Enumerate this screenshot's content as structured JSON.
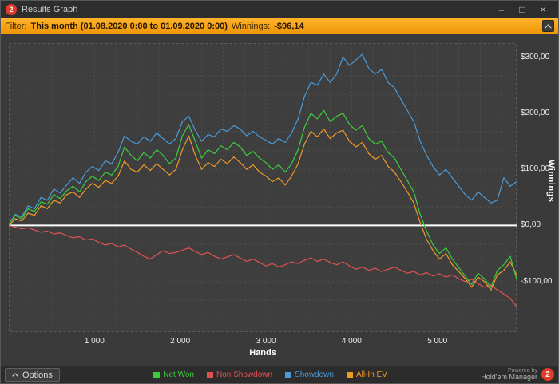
{
  "window": {
    "title": "Results Graph",
    "logo_text": "2",
    "controls": {
      "minimize": "–",
      "maximize": "□",
      "close": "×"
    }
  },
  "filter_bar": {
    "label": "Filter:",
    "value": "This month (01.08.2020 0:00 to 01.09.2020 0:00)",
    "winnings_label": "Winnings:",
    "winnings_value": "-$96,14"
  },
  "options_button": {
    "label": "Options"
  },
  "powered_by": {
    "line1": "Powered by",
    "line2": "Hold'em Manager",
    "logo_text": "2"
  },
  "colors": {
    "logo_red": "#e23b2a",
    "filter_bar_top": "#ffb32b",
    "filter_bar_bottom": "#ee9607",
    "zero_line": "#ffffff",
    "grid": "#4d4d4d"
  },
  "chart_data": {
    "type": "line",
    "title": "",
    "xlabel": "Hands",
    "ylabel": "Winnings",
    "xlim": [
      0,
      5925
    ],
    "ylim": [
      -190,
      325
    ],
    "x_start": 0,
    "x_step": 75,
    "grid": {
      "x_step": 250,
      "y_step": 33.3333
    },
    "x_ticks": [
      {
        "value": 1000,
        "label": "1 000"
      },
      {
        "value": 2000,
        "label": "2 000"
      },
      {
        "value": 3000,
        "label": "3 000"
      },
      {
        "value": 4000,
        "label": "4 000"
      },
      {
        "value": 5000,
        "label": "5 000"
      }
    ],
    "y_ticks": [
      {
        "value": 300,
        "label": "$300,00"
      },
      {
        "value": 200,
        "label": "$200,00"
      },
      {
        "value": 100,
        "label": "$100,00"
      },
      {
        "value": 0,
        "label": "$0,00"
      },
      {
        "value": -100,
        "label": "-$100,00"
      }
    ],
    "legend_position": "bottom",
    "draw_order": [
      1,
      2,
      3,
      0
    ],
    "series": [
      {
        "name": "Net Won",
        "color": "#3ecb3e",
        "values": [
          2,
          18,
          12,
          30,
          25,
          42,
          38,
          55,
          48,
          62,
          70,
          60,
          78,
          88,
          80,
          95,
          90,
          105,
          140,
          125,
          115,
          130,
          120,
          135,
          125,
          110,
          120,
          160,
          180,
          150,
          120,
          135,
          128,
          142,
          135,
          148,
          140,
          125,
          132,
          120,
          112,
          100,
          108,
          95,
          110,
          135,
          175,
          200,
          190,
          205,
          185,
          195,
          200,
          180,
          170,
          178,
          155,
          145,
          150,
          130,
          120,
          100,
          80,
          60,
          20,
          -10,
          -35,
          -50,
          -40,
          -60,
          -75,
          -90,
          -105,
          -85,
          -95,
          -110,
          -80,
          -70,
          -55,
          -96
        ]
      },
      {
        "name": "Non Showdown",
        "color": "#e05252",
        "values": [
          0,
          -3,
          -6,
          -4,
          -8,
          -12,
          -10,
          -15,
          -13,
          -18,
          -22,
          -20,
          -26,
          -24,
          -30,
          -35,
          -32,
          -38,
          -35,
          -42,
          -48,
          -55,
          -60,
          -52,
          -45,
          -50,
          -48,
          -44,
          -40,
          -46,
          -52,
          -48,
          -55,
          -60,
          -56,
          -52,
          -58,
          -64,
          -60,
          -66,
          -72,
          -68,
          -74,
          -70,
          -65,
          -68,
          -62,
          -58,
          -64,
          -60,
          -66,
          -70,
          -65,
          -72,
          -78,
          -74,
          -80,
          -76,
          -82,
          -78,
          -74,
          -80,
          -85,
          -82,
          -88,
          -84,
          -90,
          -86,
          -92,
          -88,
          -95,
          -100,
          -96,
          -104,
          -110,
          -106,
          -115,
          -122,
          -130,
          -145
        ]
      },
      {
        "name": "Showdown",
        "color": "#4a9bd8",
        "values": [
          2,
          20,
          15,
          35,
          30,
          50,
          45,
          65,
          58,
          72,
          85,
          75,
          95,
          105,
          98,
          115,
          110,
          130,
          160,
          150,
          145,
          158,
          150,
          165,
          155,
          145,
          155,
          185,
          195,
          170,
          150,
          162,
          158,
          172,
          168,
          178,
          172,
          160,
          168,
          158,
          152,
          145,
          155,
          148,
          165,
          190,
          230,
          255,
          250,
          270,
          255,
          270,
          300,
          285,
          295,
          305,
          280,
          270,
          278,
          255,
          245,
          225,
          205,
          185,
          150,
          125,
          105,
          90,
          100,
          85,
          70,
          55,
          45,
          60,
          50,
          40,
          45,
          85,
          70,
          78
        ]
      },
      {
        "name": "All-In EV",
        "color": "#ee9a2a",
        "values": [
          0,
          12,
          8,
          22,
          18,
          35,
          30,
          45,
          40,
          55,
          60,
          50,
          65,
          75,
          68,
          80,
          75,
          88,
          115,
          100,
          95,
          108,
          98,
          110,
          100,
          90,
          100,
          135,
          160,
          125,
          100,
          112,
          105,
          118,
          110,
          122,
          112,
          100,
          108,
          95,
          88,
          78,
          85,
          72,
          88,
          110,
          145,
          168,
          158,
          172,
          155,
          165,
          170,
          150,
          140,
          148,
          128,
          118,
          125,
          105,
          95,
          78,
          60,
          40,
          5,
          -25,
          -45,
          -60,
          -50,
          -70,
          -82,
          -95,
          -110,
          -92,
          -100,
          -115,
          -88,
          -80,
          -65,
          -88
        ]
      }
    ]
  }
}
